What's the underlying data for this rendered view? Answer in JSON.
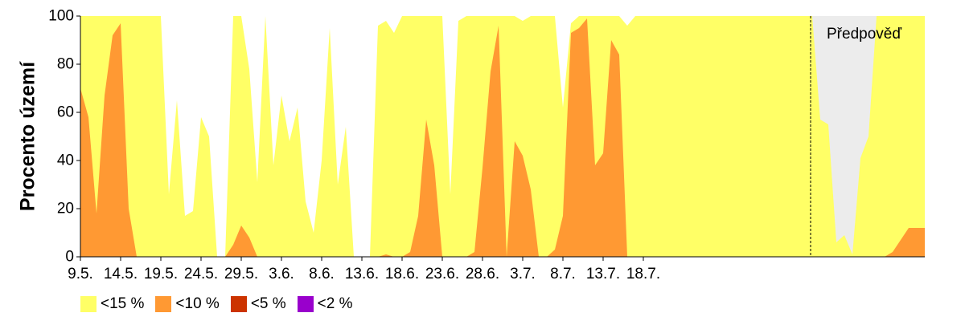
{
  "chart_data": {
    "type": "area",
    "ylabel": "Procento území",
    "ylim": [
      0,
      100
    ],
    "y_ticks": [
      "0",
      "20",
      "40",
      "60",
      "80",
      "100"
    ],
    "x_tick_labels": [
      "9.5.",
      "14.5.",
      "19.5.",
      "24.5.",
      "29.5.",
      "3.6.",
      "8.6.",
      "13.6.",
      "18.6.",
      "23.6.",
      "28.6.",
      "3.7.",
      "8.7.",
      "13.7.",
      "18.7."
    ],
    "forecast_label": "Předpověď",
    "forecast_start_index": 90.8,
    "forecast_color": "#ececec",
    "x_count": 106,
    "series": [
      {
        "name": "<15 %",
        "color": "#ffff66",
        "values": [
          100,
          100,
          100,
          100,
          100,
          100,
          100,
          100,
          100,
          100,
          100,
          26,
          65,
          17,
          19,
          58,
          50,
          0,
          0,
          100,
          100,
          78,
          31,
          100,
          38,
          67,
          48,
          62,
          23,
          10,
          40,
          95,
          30,
          54,
          0,
          0,
          0,
          96,
          98,
          93,
          100,
          100,
          100,
          100,
          100,
          100,
          26,
          98,
          100,
          100,
          100,
          100,
          100,
          100,
          100,
          98,
          100,
          100,
          100,
          100,
          62,
          97,
          100,
          100,
          100,
          100,
          100,
          100,
          96,
          100,
          100,
          100,
          100,
          100,
          100,
          100,
          100,
          100,
          100,
          100,
          100,
          100,
          100,
          100,
          100,
          100,
          100,
          100,
          100,
          100,
          100,
          100,
          57,
          55,
          6,
          9,
          1,
          41,
          50,
          100,
          100,
          100,
          100,
          100,
          100,
          100
        ]
      },
      {
        "name": "<10 %",
        "color": "#ff9933",
        "values": [
          70,
          58,
          18,
          67,
          92,
          97,
          20,
          0,
          0,
          0,
          0,
          0,
          0,
          0,
          0,
          0,
          0,
          0,
          0,
          5,
          13,
          8,
          0,
          0,
          0,
          0,
          0,
          0,
          0,
          0,
          0,
          0,
          0,
          0,
          0,
          0,
          0,
          0,
          1,
          0,
          0,
          2,
          17,
          57,
          38,
          0,
          0,
          0,
          0,
          2,
          37,
          77,
          96,
          0,
          48,
          42,
          28,
          0,
          0,
          3,
          17,
          93,
          95,
          99,
          38,
          43,
          90,
          84,
          0,
          0,
          0,
          0,
          0,
          0,
          0,
          0,
          0,
          0,
          0,
          0,
          0,
          0,
          0,
          0,
          0,
          0,
          0,
          0,
          0,
          0,
          0,
          0,
          0,
          0,
          0,
          0,
          0,
          0,
          0,
          0,
          0,
          2,
          7,
          12,
          12,
          12
        ]
      },
      {
        "name": "<5 %",
        "color": "#cc3300",
        "values": []
      },
      {
        "name": "<2 %",
        "color": "#9900cc",
        "values": []
      }
    ],
    "grid": false,
    "legend_position": "bottom-left"
  }
}
